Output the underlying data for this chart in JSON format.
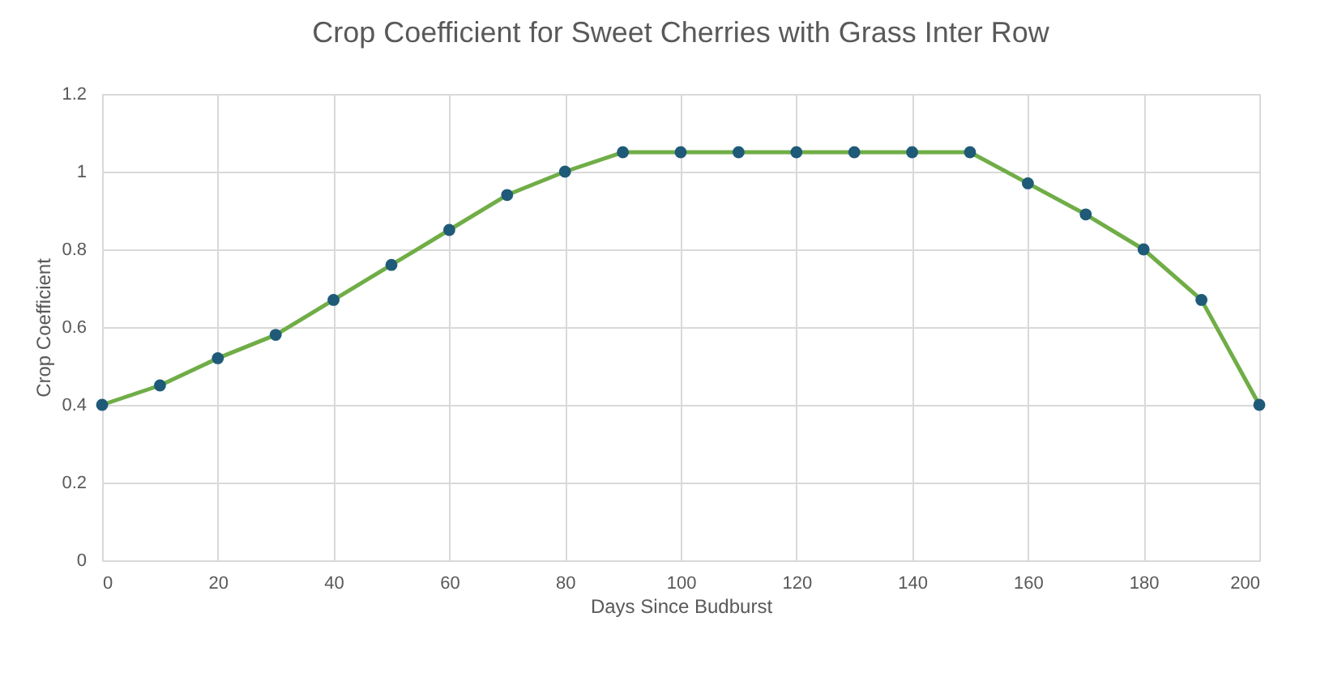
{
  "chart_data": {
    "type": "line",
    "title": "Crop Coefficient for Sweet Cherries with Grass Inter Row",
    "xlabel": "Days Since Budburst",
    "ylabel": "Crop Coefficient",
    "x": [
      0,
      10,
      20,
      30,
      40,
      50,
      60,
      70,
      80,
      90,
      100,
      110,
      120,
      130,
      140,
      150,
      160,
      170,
      180,
      190,
      200
    ],
    "series": [
      {
        "color": "#70ad47",
        "colors": [
          "#1f5a78",
          "#1f5a78",
          "#1f5a78",
          "#1f5a78",
          "#1f5a78",
          "#1f5a78",
          "#1f5a78",
          "#1f5a78",
          "#1f5a78",
          "#1f5a78",
          "#1f5a78",
          "#1f5a78",
          "#1f5a78",
          "#1f5a78",
          "#1f5a78",
          "#1f5a78",
          "#1f5a78",
          "#1f5a78",
          "#1f5a78",
          "#1f5a78",
          "#1f5a78"
        ],
        "values": [
          0.4,
          0.45,
          0.52,
          0.58,
          0.67,
          0.76,
          0.85,
          0.94,
          1.0,
          1.05,
          1.05,
          1.05,
          1.05,
          1.05,
          1.05,
          1.05,
          0.97,
          0.89,
          0.8,
          0.67,
          0.4
        ]
      }
    ],
    "xlim": [
      0,
      200
    ],
    "xticks": [
      0,
      20,
      40,
      60,
      80,
      100,
      120,
      140,
      160,
      180,
      200
    ],
    "ylim": [
      0,
      1.2
    ],
    "yticks": [
      0,
      0.2,
      0.4,
      0.6,
      0.8,
      1,
      1.2
    ],
    "grid": true,
    "marker": "circle",
    "line_style": "solid",
    "legend": false
  }
}
